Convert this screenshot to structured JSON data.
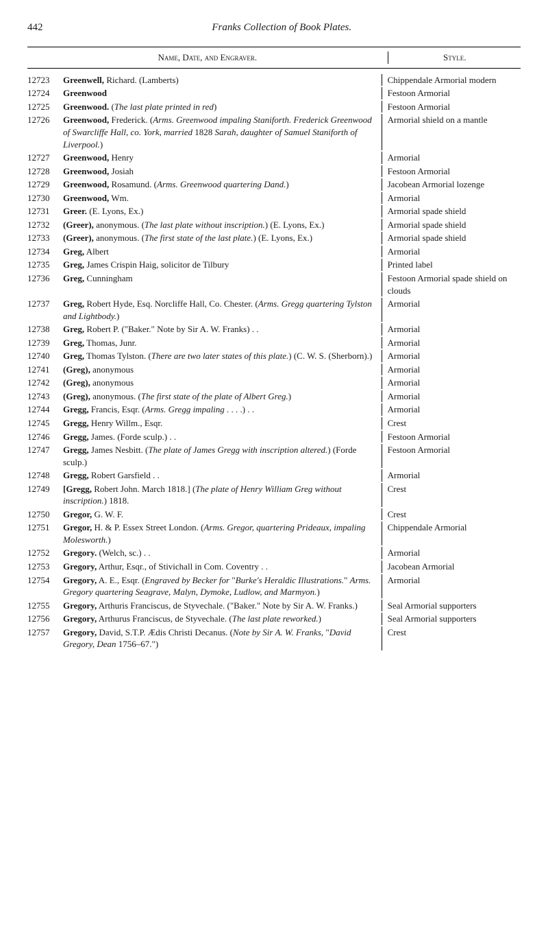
{
  "page": {
    "number": "442",
    "title": "Franks Collection of Book Plates."
  },
  "columns": {
    "nde": "Name, Date, and Engraver.",
    "style": "Style."
  },
  "entries": [
    {
      "id": "12723",
      "surname": "Greenwell,",
      "rest": " Richard.  (Lamberts)",
      "style": "Chippendale Armorial modern"
    },
    {
      "id": "12724",
      "surname": "Greenwood",
      "rest": "",
      "style": "Festoon Armorial"
    },
    {
      "id": "12725",
      "surname": "Greenwood.",
      "rest": "  (<span class=\"italic\">The last plate printed in red</span>)",
      "style": "Festoon Armorial"
    },
    {
      "id": "12726",
      "surname": "Greenwood,",
      "rest": " Frederick.  (<span class=\"italic\">Arms. Greenwood impaling Staniforth. Frederick Greenwood of Swarcliffe Hall, co. York, married</span> 1828 <span class=\"italic\">Sarah, daughter of Samuel Staniforth of Liverpool.</span>)",
      "style": "Armorial shield on a mantle"
    },
    {
      "id": "12727",
      "surname": "Greenwood,",
      "rest": " Henry",
      "style": "Armorial"
    },
    {
      "id": "12728",
      "surname": "Greenwood,",
      "rest": " Josiah",
      "style": "Festoon Armorial"
    },
    {
      "id": "12729",
      "surname": "Greenwood,",
      "rest": " Rosamund.  (<span class=\"italic\">Arms. Greenwood quartering Dand.</span>)",
      "style": "Jacobean Armorial lozenge"
    },
    {
      "id": "12730",
      "surname": "Greenwood,",
      "rest": " Wm.",
      "style": "Armorial"
    },
    {
      "id": "12731",
      "surname": "Greer.",
      "rest": "  (E. Lyons, Ex.)",
      "style": "Armorial spade shield"
    },
    {
      "id": "12732",
      "surname": "(Greer),",
      "rest": " anonymous.  (<span class=\"italic\">The last plate without inscription.</span>) (E. Lyons, Ex.)",
      "style": "Armorial spade shield"
    },
    {
      "id": "12733",
      "surname": "(Greer),",
      "rest": " anonymous.  (<span class=\"italic\">The first state of the last plate.</span>)  (E. Lyons, Ex.)",
      "style": "Armorial spade shield"
    },
    {
      "id": "12734",
      "surname": "Greg,",
      "rest": " Albert",
      "style": "Armorial"
    },
    {
      "id": "12735",
      "surname": "Greg,",
      "rest": " James Crispin Haig, solicitor de Tilbury",
      "style": "Printed label"
    },
    {
      "id": "12736",
      "surname": "Greg,",
      "rest": " Cunningham",
      "style": "Festoon Armorial spade shield on clouds"
    },
    {
      "id": "12737",
      "surname": "Greg,",
      "rest": " Robert Hyde, Esq.  Norcliffe Hall, Co. Chester.  (<span class=\"italic\">Arms. Gregg quartering Tylston and Lightbody.</span>)",
      "style": "Armorial"
    },
    {
      "id": "12738",
      "surname": "Greg,",
      "rest": " Robert P.  (\"Baker.\"  Note by Sir A. W. Franks) . .",
      "style": "Armorial"
    },
    {
      "id": "12739",
      "surname": "Greg,",
      "rest": " Thomas, Junr.",
      "style": "Armorial"
    },
    {
      "id": "12740",
      "surname": "Greg,",
      "rest": " Thomas Tylston.  (<span class=\"italic\">There are two later states of this plate.</span>)  (C. W. S. (Sherborn).)",
      "style": "Armorial"
    },
    {
      "id": "12741",
      "surname": "(Greg),",
      "rest": " anonymous",
      "style": "Armorial"
    },
    {
      "id": "12742",
      "surname": "(Greg),",
      "rest": " anonymous",
      "style": "Armorial"
    },
    {
      "id": "12743",
      "surname": "(Greg),",
      "rest": " anonymous.  (<span class=\"italic\">The first state of the plate of Albert Greg.</span>)",
      "style": "Armorial"
    },
    {
      "id": "12744",
      "surname": "Gregg,",
      "rest": " Francis, Esqr.  (<span class=\"italic\">Arms.  Gregg impaling</span> . . . .)  . .",
      "style": "Armorial"
    },
    {
      "id": "12745",
      "surname": "Gregg,",
      "rest": " Henry Willm., Esqr.",
      "style": "Crest"
    },
    {
      "id": "12746",
      "surname": "Gregg,",
      "rest": " James.  (Forde sculp.) . .",
      "style": "Festoon Armorial"
    },
    {
      "id": "12747",
      "surname": "Gregg,",
      "rest": " James Nesbitt.  (<span class=\"italic\">The plate of James Gregg with inscription altered.</span>)  (Forde sculp.)",
      "style": "Festoon Armorial"
    },
    {
      "id": "12748",
      "surname": "Gregg,",
      "rest": " Robert Garsfield . .",
      "style": "Armorial"
    },
    {
      "id": "12749",
      "surname": "[Gregg,",
      "rest": " Robert John.  March 1818.]  (<span class=\"italic\">The plate of Henry William Greg without inscription.</span>)  1818.",
      "style": "Crest"
    },
    {
      "id": "12750",
      "surname": "Gregor,",
      "rest": " G. W. F.",
      "style": "Crest"
    },
    {
      "id": "12751",
      "surname": "Gregor,",
      "rest": " H. & P.  Essex Street London.  (<span class=\"italic\">Arms. Gregor, quartering Prideaux, impaling Molesworth.</span>)",
      "style": "Chippendale Armorial"
    },
    {
      "id": "12752",
      "surname": "Gregory.",
      "rest": "  (Welch, sc.) . .",
      "style": "Armorial"
    },
    {
      "id": "12753",
      "surname": "Gregory,",
      "rest": " Arthur, Esqr., of Stivichall in Com. Coventry  . .",
      "style": "Jacobean Armorial"
    },
    {
      "id": "12754",
      "surname": "Gregory,",
      "rest": " A. E., Esqr.  (<span class=\"italic\">Engraved by Becker for</span> \"<span class=\"italic\">Burke's Heraldic Illustrations.</span>\"  <span class=\"italic\">Arms. Gregory quartering Seagrave, Malyn, Dymoke, Ludlow, and Marmyon.</span>)",
      "style": "Armorial"
    },
    {
      "id": "12755",
      "surname": "Gregory,",
      "rest": " Arthuris Franciscus, de Styvechale.  (\"Baker.\"  Note by Sir A. W. Franks.)",
      "style": "Seal Armorial supporters"
    },
    {
      "id": "12756",
      "surname": "Gregory,",
      "rest": " Arthurus Franciscus, de Styvechale.  (<span class=\"italic\">The last plate reworked.</span>)",
      "style": "Seal Armorial supporters"
    },
    {
      "id": "12757",
      "surname": "Gregory,",
      "rest": " David, S.T.P.  Ædis Christi Decanus.  (<span class=\"italic\">Note by Sir A. W. Franks,</span> \"<span class=\"italic\">David Gregory, Dean</span> 1756–67.\")",
      "style": "Crest"
    }
  ]
}
